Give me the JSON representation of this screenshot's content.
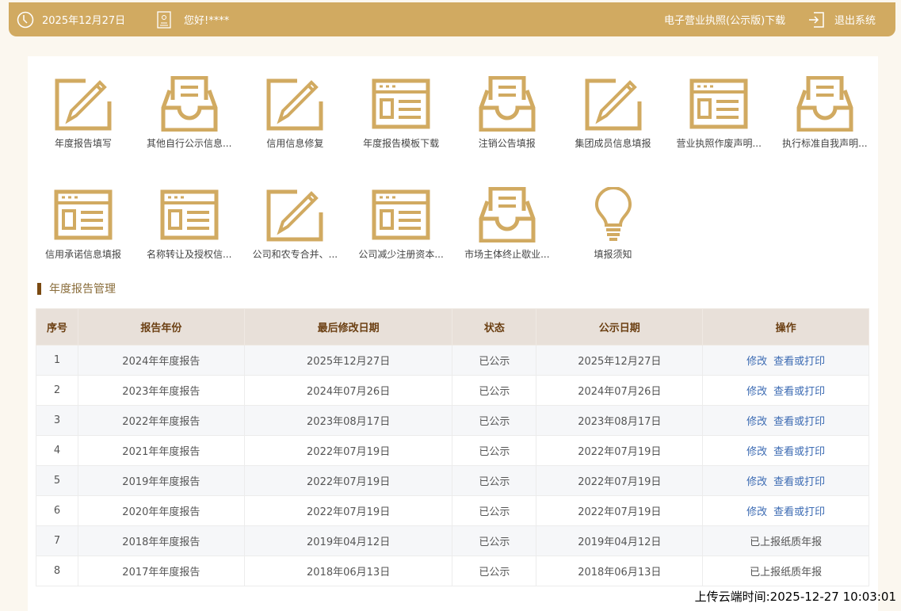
{
  "header": {
    "date": "2025年12月27日",
    "greeting": "您好!****",
    "license_download": "电子营业执照(公示版)下载",
    "logout": "退出系统"
  },
  "accent": "#d1aa61",
  "shortcuts": [
    {
      "label": "年度报告填写",
      "icon": "pencil"
    },
    {
      "label": "其他自行公示信息...",
      "icon": "inbox"
    },
    {
      "label": "信用信息修复",
      "icon": "pencil"
    },
    {
      "label": "年度报告模板下载",
      "icon": "form"
    },
    {
      "label": "注销公告填报",
      "icon": "inbox"
    },
    {
      "label": "集团成员信息填报",
      "icon": "pencil"
    },
    {
      "label": "营业执照作废声明...",
      "icon": "form"
    },
    {
      "label": "执行标准自我声明...",
      "icon": "inbox"
    },
    {
      "label": "信用承诺信息填报",
      "icon": "form"
    },
    {
      "label": "名称转让及授权信...",
      "icon": "form"
    },
    {
      "label": "公司和农专合并、...",
      "icon": "pencil"
    },
    {
      "label": "公司减少注册资本...",
      "icon": "form"
    },
    {
      "label": "市场主体终止歇业...",
      "icon": "inbox"
    },
    {
      "label": "填报须知",
      "icon": "bulb"
    }
  ],
  "section_title": "年度报告管理",
  "table": {
    "columns": [
      "序号",
      "报告年份",
      "最后修改日期",
      "状态",
      "公示日期",
      "操作"
    ],
    "rows": [
      [
        "1",
        "2024年年度报告",
        "2025年12月27日",
        "已公示",
        "2025年12月27日",
        [
          "修改",
          "查看或打印"
        ]
      ],
      [
        "2",
        "2023年年度报告",
        "2024年07月26日",
        "已公示",
        "2024年07月26日",
        [
          "修改",
          "查看或打印"
        ]
      ],
      [
        "3",
        "2022年年度报告",
        "2023年08月17日",
        "已公示",
        "2023年08月17日",
        [
          "修改",
          "查看或打印"
        ]
      ],
      [
        "4",
        "2021年年度报告",
        "2022年07月19日",
        "已公示",
        "2022年07月19日",
        [
          "修改",
          "查看或打印"
        ]
      ],
      [
        "5",
        "2019年年度报告",
        "2022年07月19日",
        "已公示",
        "2022年07月19日",
        [
          "修改",
          "查看或打印"
        ]
      ],
      [
        "6",
        "2020年年度报告",
        "2022年07月19日",
        "已公示",
        "2022年07月19日",
        [
          "修改",
          "查看或打印"
        ]
      ],
      [
        "7",
        "2018年年度报告",
        "2019年04月12日",
        "已公示",
        "2019年04月12日",
        "已上报纸质年报"
      ],
      [
        "8",
        "2017年年度报告",
        "2018年06月13日",
        "已公示",
        "2018年06月13日",
        "已上报纸质年报"
      ]
    ]
  },
  "footer": "上传云端时间:2025-12-27 10:03:01"
}
